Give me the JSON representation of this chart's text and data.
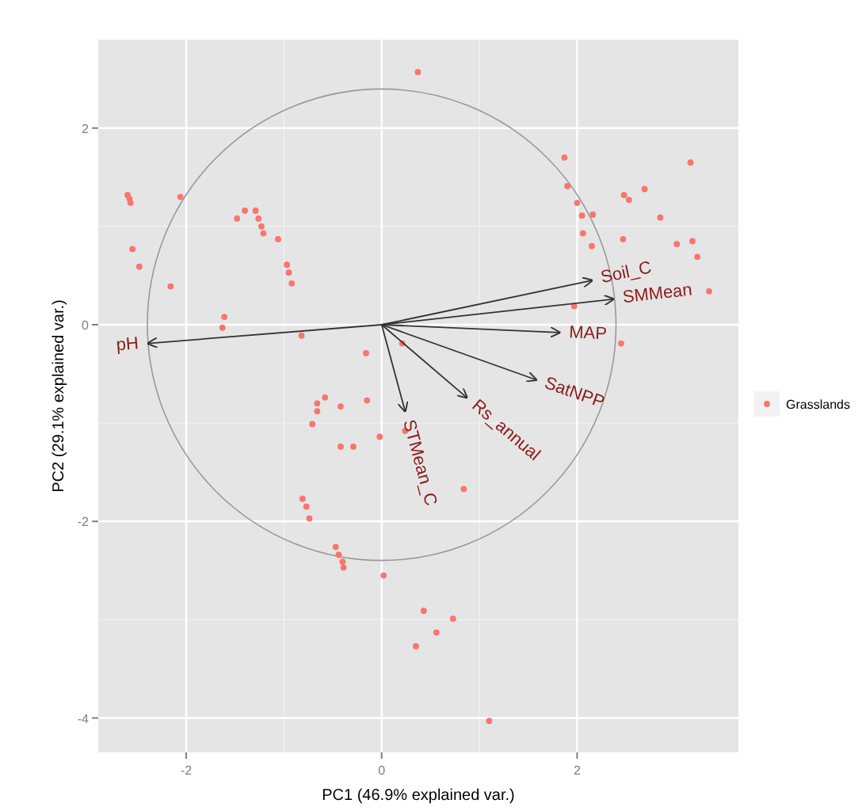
{
  "chart_data": {
    "type": "scatter",
    "xlabel": "PC1 (46.9% explained var.)",
    "ylabel": "PC2 (29.1% explained var.)",
    "xlim": [
      -2.9,
      3.65
    ],
    "ylim": [
      -4.35,
      2.9
    ],
    "xticks": [
      -2,
      0,
      2
    ],
    "yticks": [
      -4,
      -2,
      0,
      2
    ],
    "grid": true,
    "legend": "right",
    "series": [
      {
        "name": "Grasslands",
        "color": "#f8766d",
        "marker": "circle",
        "x": [
          -2.58,
          -2.6,
          -2.57,
          -2.06,
          -2.55,
          -2.48,
          -2.16,
          -1.4,
          -1.48,
          -1.29,
          -1.26,
          -1.23,
          -1.21,
          -1.06,
          -0.97,
          -0.95,
          -0.92,
          -1.61,
          -1.63,
          -0.82,
          -0.16,
          -0.15,
          -0.58,
          -0.66,
          -0.66,
          -0.42,
          -0.71,
          -0.02,
          -0.42,
          -0.29,
          -0.81,
          -0.77,
          -0.74,
          -0.47,
          -0.44,
          -0.4,
          -0.39,
          0.02,
          0.24,
          0.84,
          0.43,
          0.73,
          0.56,
          0.35,
          1.1,
          0.37,
          1.87,
          1.9,
          2.0,
          2.05,
          2.16,
          2.06,
          2.15,
          2.48,
          2.53,
          2.69,
          3.16,
          2.85,
          2.47,
          3.02,
          3.18,
          3.23,
          3.35,
          1.97,
          2.45,
          0.21
        ],
        "values": [
          1.28,
          1.32,
          1.24,
          1.3,
          0.77,
          0.59,
          0.39,
          1.16,
          1.08,
          1.16,
          1.08,
          1.0,
          0.93,
          0.87,
          0.61,
          0.53,
          0.42,
          0.08,
          -0.03,
          -0.11,
          -0.29,
          -0.77,
          -0.74,
          -0.8,
          -0.88,
          -0.83,
          -1.01,
          -1.14,
          -1.24,
          -1.24,
          -1.77,
          -1.85,
          -1.97,
          -2.26,
          -2.34,
          -2.41,
          -2.47,
          -2.55,
          -1.08,
          -1.67,
          -2.91,
          -2.99,
          -3.13,
          -3.27,
          -4.03,
          2.57,
          1.7,
          1.41,
          1.24,
          1.11,
          1.12,
          0.93,
          0.8,
          1.32,
          1.27,
          1.38,
          1.65,
          1.09,
          0.87,
          0.82,
          0.85,
          0.69,
          0.34,
          0.19,
          -0.19,
          -0.19
        ]
      },
      {
        "type": "line",
        "name": "pH",
        "color": "#333333",
        "x": [
          0,
          -2.39
        ],
        "values": [
          0,
          -0.19
        ]
      },
      {
        "type": "line",
        "name": "Soil_C",
        "color": "#333333",
        "x": [
          0,
          2.15
        ],
        "values": [
          0,
          0.45
        ]
      },
      {
        "type": "line",
        "name": "SMMean",
        "color": "#333333",
        "x": [
          0,
          2.37
        ],
        "values": [
          0,
          0.26
        ]
      },
      {
        "type": "line",
        "name": "MAP",
        "color": "#333333",
        "x": [
          0,
          1.82
        ],
        "values": [
          0,
          -0.08
        ]
      },
      {
        "type": "line",
        "name": "SatNPP",
        "color": "#333333",
        "x": [
          0,
          1.58
        ],
        "values": [
          0,
          -0.56
        ]
      },
      {
        "type": "line",
        "name": "Rs_annual",
        "color": "#333333",
        "x": [
          0,
          0.87
        ],
        "values": [
          0,
          -0.74
        ]
      },
      {
        "type": "line",
        "name": "STMean_C",
        "color": "#333333",
        "x": [
          0,
          0.24
        ],
        "values": [
          0,
          -0.88
        ]
      }
    ]
  }
}
